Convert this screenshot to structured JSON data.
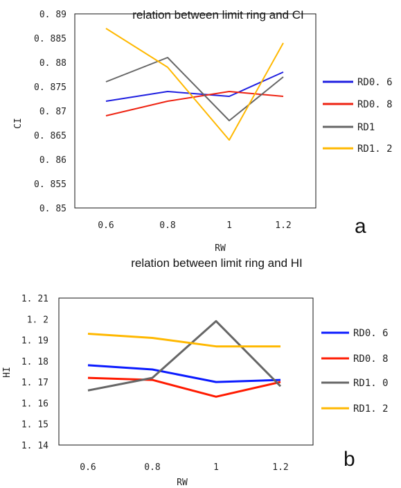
{
  "chart_data": [
    {
      "type": "line",
      "title": "relation between limit ring and CI",
      "xlabel": "RW",
      "ylabel": "CI",
      "categories": [
        "0.6",
        "0.8",
        "1",
        "1.2"
      ],
      "ylim": [
        0.85,
        0.89
      ],
      "yticks": [
        "0.85",
        "0.855",
        "0.86",
        "0.865",
        "0.87",
        "0.875",
        "0.88",
        "0.885",
        "0.89"
      ],
      "yticks_display": [
        "0. 85",
        "0. 855",
        "0. 86",
        "0. 865",
        "0. 87",
        "0. 875",
        "0. 88",
        "0. 885",
        "0. 89"
      ],
      "legend_position": "right",
      "panel_label": "a",
      "series": [
        {
          "name": "RD0. 6",
          "color": "#1f1fe0",
          "values": [
            0.872,
            0.874,
            0.873,
            0.878
          ]
        },
        {
          "name": "RD0. 8",
          "color": "#ee2211",
          "values": [
            0.869,
            0.872,
            0.874,
            0.873
          ]
        },
        {
          "name": "RD1",
          "color": "#666666",
          "values": [
            0.876,
            0.881,
            0.868,
            0.877
          ]
        },
        {
          "name": "RD1. 2",
          "color": "#ffb800",
          "values": [
            0.887,
            0.879,
            0.864,
            0.884
          ]
        }
      ]
    },
    {
      "type": "line",
      "title": "relation between limit ring and HI",
      "xlabel": "RW",
      "ylabel": "HI",
      "categories": [
        "0.6",
        "0.8",
        "1",
        "1.2"
      ],
      "ylim": [
        1.14,
        1.21
      ],
      "yticks": [
        "1.14",
        "1.15",
        "1.16",
        "1.17",
        "1.18",
        "1.19",
        "1.2",
        "1.21"
      ],
      "yticks_display": [
        "1. 14",
        "1. 15",
        "1. 16",
        "1. 17",
        "1. 18",
        "1. 19",
        "1. 2",
        "1. 21"
      ],
      "legend_position": "right",
      "panel_label": "b",
      "series": [
        {
          "name": "RD0. 6",
          "color": "#0a1aff",
          "values": [
            1.178,
            1.176,
            1.17,
            1.171
          ]
        },
        {
          "name": "RD0. 8",
          "color": "#ff1a00",
          "values": [
            1.172,
            1.171,
            1.163,
            1.17
          ]
        },
        {
          "name": "RD1. 0",
          "color": "#666666",
          "values": [
            1.166,
            1.172,
            1.199,
            1.168
          ]
        },
        {
          "name": "RD1. 2",
          "color": "#ffb800",
          "values": [
            1.193,
            1.191,
            1.187,
            1.187
          ]
        }
      ]
    }
  ]
}
